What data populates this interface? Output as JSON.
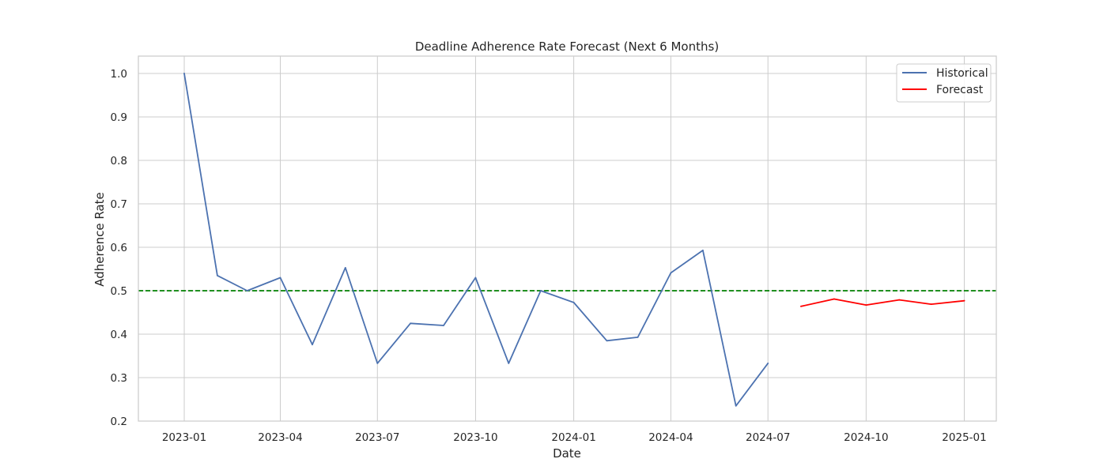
{
  "chart_data": {
    "type": "line",
    "title": "Deadline Adherence Rate Forecast (Next 6 Months)",
    "xlabel": "Date",
    "ylabel": "Adherence Rate",
    "x_ticks": [
      "2023-01",
      "2023-04",
      "2023-07",
      "2023-10",
      "2024-01",
      "2024-04",
      "2024-07",
      "2024-10",
      "2025-01"
    ],
    "y_ticks": [
      "0.2",
      "0.3",
      "0.4",
      "0.5",
      "0.6",
      "0.7",
      "0.8",
      "0.9",
      "1.0"
    ],
    "ylim": [
      0.2,
      1.04
    ],
    "xlim": [
      "2022-11-19",
      "2025-01-31"
    ],
    "grid": true,
    "legend_position": "top-right",
    "reference_line": {
      "y": 0.5,
      "color": "#008000",
      "style": "dashed"
    },
    "series": [
      {
        "name": "Historical",
        "color": "#4c72b0",
        "points": [
          {
            "x": "2023-01-01",
            "y": 1.0
          },
          {
            "x": "2023-02-01",
            "y": 0.535
          },
          {
            "x": "2023-03-01",
            "y": 0.5
          },
          {
            "x": "2023-04-01",
            "y": 0.53
          },
          {
            "x": "2023-05-01",
            "y": 0.376
          },
          {
            "x": "2023-06-01",
            "y": 0.553
          },
          {
            "x": "2023-07-01",
            "y": 0.333
          },
          {
            "x": "2023-08-01",
            "y": 0.425
          },
          {
            "x": "2023-09-01",
            "y": 0.42
          },
          {
            "x": "2023-10-01",
            "y": 0.53
          },
          {
            "x": "2023-11-01",
            "y": 0.333
          },
          {
            "x": "2023-12-01",
            "y": 0.5
          },
          {
            "x": "2024-01-01",
            "y": 0.473
          },
          {
            "x": "2024-02-01",
            "y": 0.385
          },
          {
            "x": "2024-03-01",
            "y": 0.393
          },
          {
            "x": "2024-04-01",
            "y": 0.541
          },
          {
            "x": "2024-05-01",
            "y": 0.593
          },
          {
            "x": "2024-06-01",
            "y": 0.235
          },
          {
            "x": "2024-07-01",
            "y": 0.333
          }
        ]
      },
      {
        "name": "Forecast",
        "color": "#ff0000",
        "points": [
          {
            "x": "2024-08-01",
            "y": 0.464
          },
          {
            "x": "2024-09-01",
            "y": 0.481
          },
          {
            "x": "2024-10-01",
            "y": 0.467
          },
          {
            "x": "2024-11-01",
            "y": 0.479
          },
          {
            "x": "2024-12-01",
            "y": 0.469
          },
          {
            "x": "2025-01-01",
            "y": 0.477
          }
        ]
      }
    ]
  }
}
